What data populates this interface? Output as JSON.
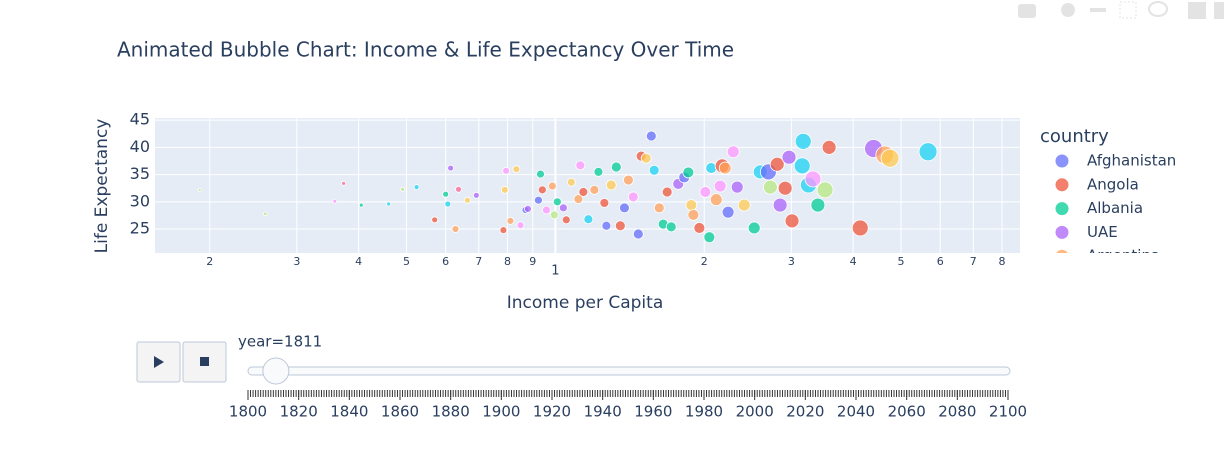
{
  "chart_data": {
    "type": "scatter",
    "title": "Animated Bubble Chart: Income & Life Expectancy Over Time",
    "x_label": "Income per Capita",
    "y_label": "Life Expectancy",
    "log_x": true,
    "grid": true,
    "xlim": [
      155,
      8700
    ],
    "ylim": [
      20.6,
      45.4
    ],
    "xticks": [
      {
        "value": 200,
        "label": "2"
      },
      {
        "value": 300,
        "label": "3"
      },
      {
        "value": 400,
        "label": "4"
      },
      {
        "value": 500,
        "label": "5"
      },
      {
        "value": 600,
        "label": "6"
      },
      {
        "value": 700,
        "label": "7"
      },
      {
        "value": 800,
        "label": "8"
      },
      {
        "value": 900,
        "label": "9"
      },
      {
        "value": 1000,
        "label": "1"
      },
      {
        "value": 2000,
        "label": "2"
      },
      {
        "value": 3000,
        "label": "3"
      },
      {
        "value": 4000,
        "label": "4"
      },
      {
        "value": 5000,
        "label": "5"
      },
      {
        "value": 6000,
        "label": "6"
      },
      {
        "value": 7000,
        "label": "7"
      },
      {
        "value": 8000,
        "label": "8"
      }
    ],
    "yticks": [
      25,
      30,
      35,
      40,
      45
    ],
    "legend": {
      "title": "country",
      "position": "right",
      "entries": [
        {
          "name": "Afghanistan",
          "color": "#636efa"
        },
        {
          "name": "Angola",
          "color": "#EF553B"
        },
        {
          "name": "Albania",
          "color": "#00cc96"
        },
        {
          "name": "UAE",
          "color": "#ab63fa"
        },
        {
          "name": "Argentina",
          "color": "#FFA15A"
        }
      ]
    },
    "bubbles": {
      "x": [
        191,
        259,
        373,
        358,
        405,
        460,
        491,
        524,
        570,
        600,
        614,
        606,
        628,
        637,
        664,
        692,
        785,
        790,
        795,
        811,
        834,
        850,
        870,
        880,
        924,
        933,
        941,
        959,
        986,
        995,
        1009,
        1038,
        1052,
        1077,
        1113,
        1123,
        1139,
        1166,
        1199,
        1222,
        1256,
        1268,
        1297,
        1328,
        1353,
        1379,
        1405,
        1437,
        1471,
        1491,
        1526,
        1563,
        1584,
        1622,
        1652,
        1683,
        1715,
        1772,
        1822,
        1857,
        1883,
        1901,
        1955,
        2010,
        2048,
        2066,
        2115,
        2154,
        2174,
        2205,
        2235,
        2289,
        2332,
        2409,
        2524,
        2596,
        2696,
        2809,
        2721,
        2848,
        2915,
        2968,
        3010,
        3171,
        3156,
        3249,
        3318,
        3395,
        3510,
        3577,
        4135,
        4399,
        4637,
        4750,
        5670
      ],
      "y": [
        32.2,
        27.8,
        33.4,
        30.1,
        29.4,
        29.6,
        32.3,
        32.7,
        26.7,
        31.4,
        36.2,
        29.6,
        25.0,
        32.3,
        30.3,
        31.2,
        24.8,
        32.2,
        35.7,
        26.5,
        36.0,
        25.7,
        28.5,
        28.7,
        30.3,
        35.1,
        32.2,
        28.5,
        32.9,
        27.6,
        30.0,
        28.9,
        26.7,
        33.6,
        30.5,
        36.7,
        31.8,
        26.8,
        32.2,
        35.5,
        29.8,
        25.6,
        33.1,
        36.4,
        25.6,
        28.9,
        34.0,
        30.9,
        24.1,
        38.4,
        38.0,
        42.1,
        35.8,
        28.9,
        25.9,
        31.8,
        25.4,
        33.3,
        34.5,
        35.4,
        29.4,
        27.6,
        25.2,
        31.8,
        23.5,
        36.2,
        30.4,
        32.9,
        36.6,
        36.2,
        28.1,
        39.2,
        32.7,
        29.4,
        25.2,
        35.5,
        35.5,
        36.9,
        32.7,
        29.4,
        32.5,
        38.2,
        26.5,
        41.1,
        36.6,
        33.1,
        34.2,
        29.4,
        32.2,
        40.0,
        25.2,
        39.8,
        38.6,
        38.0,
        39.2
      ],
      "size": [
        1.5,
        1.8,
        2,
        2,
        2,
        2,
        2,
        2.5,
        3,
        3,
        3,
        3,
        3.5,
        3,
        3,
        3,
        3.5,
        3.5,
        3.5,
        3.5,
        3.5,
        3.5,
        3.5,
        3.5,
        4,
        4,
        4,
        4,
        4,
        4,
        4,
        4,
        4,
        4,
        4.5,
        4.5,
        4.5,
        4.5,
        4.5,
        4.5,
        4.5,
        4.5,
        5,
        5,
        5,
        5,
        5,
        5,
        5,
        5,
        5,
        5,
        5,
        5,
        5,
        5,
        5,
        5.5,
        5.5,
        5.5,
        5.5,
        5.5,
        5.5,
        5.5,
        5.5,
        5.5,
        6,
        6,
        7,
        6,
        6,
        6,
        6,
        6,
        6,
        7,
        8,
        7,
        7,
        7,
        7,
        7,
        7,
        8,
        8,
        8,
        8,
        7,
        8,
        7,
        8,
        9,
        9,
        9,
        9
      ],
      "colors": [
        "#B6E880",
        "#B6E880",
        "#FF6692",
        "#FF97FF",
        "#00cc96",
        "#19d3f3",
        "#B6E880",
        "#19d3f3",
        "#EF553B",
        "#00cc96",
        "#ab63fa",
        "#19d3f3",
        "#FFA15A",
        "#FF6692",
        "#FECB52",
        "#ab63fa",
        "#EF553B",
        "#FECB52",
        "#FF97FF",
        "#FFA15A",
        "#FECB52",
        "#FF97FF",
        "#636efa",
        "#ab63fa",
        "#636efa",
        "#00cc96",
        "#EF553B",
        "#FF97FF",
        "#FFA15A",
        "#B6E880",
        "#00cc96",
        "#ab63fa",
        "#EF553B",
        "#FECB52",
        "#FFA15A",
        "#FF97FF",
        "#EF553B",
        "#19d3f3",
        "#FFA15A",
        "#00cc96",
        "#EF553B",
        "#636efa",
        "#FECB52",
        "#00cc96",
        "#EF553B",
        "#636efa",
        "#FFA15A",
        "#FF97FF",
        "#636efa",
        "#EF553B",
        "#FECB52",
        "#636efa",
        "#19d3f3",
        "#FFA15A",
        "#00cc96",
        "#EF553B",
        "#00cc96",
        "#ab63fa",
        "#636efa",
        "#00cc96",
        "#FECB52",
        "#FFA15A",
        "#EF553B",
        "#FF97FF",
        "#00cc96",
        "#19d3f3",
        "#FFA15A",
        "#FF97FF",
        "#EF553B",
        "#FFA15A",
        "#636efa",
        "#FF97FF",
        "#ab63fa",
        "#FECB52",
        "#00cc96",
        "#19d3f3",
        "#636efa",
        "#EF553B",
        "#B6E880",
        "#ab63fa",
        "#EF553B",
        "#ab63fa",
        "#EF553B",
        "#19d3f3",
        "#19d3f3",
        "#19d3f3",
        "#FF97FF",
        "#00cc96",
        "#B6E880",
        "#EF553B",
        "#EF553B",
        "#ab63fa",
        "#FFA15A",
        "#FECB52",
        "#19d3f3"
      ]
    },
    "slider": {
      "current_label": "year=1811",
      "value": 1811,
      "range": [
        1800,
        2100
      ],
      "step": 1,
      "ticks": [
        1800,
        1820,
        1840,
        1860,
        1880,
        1900,
        1920,
        1940,
        1960,
        1980,
        2000,
        2020,
        2040,
        2060,
        2080,
        2100
      ]
    }
  }
}
